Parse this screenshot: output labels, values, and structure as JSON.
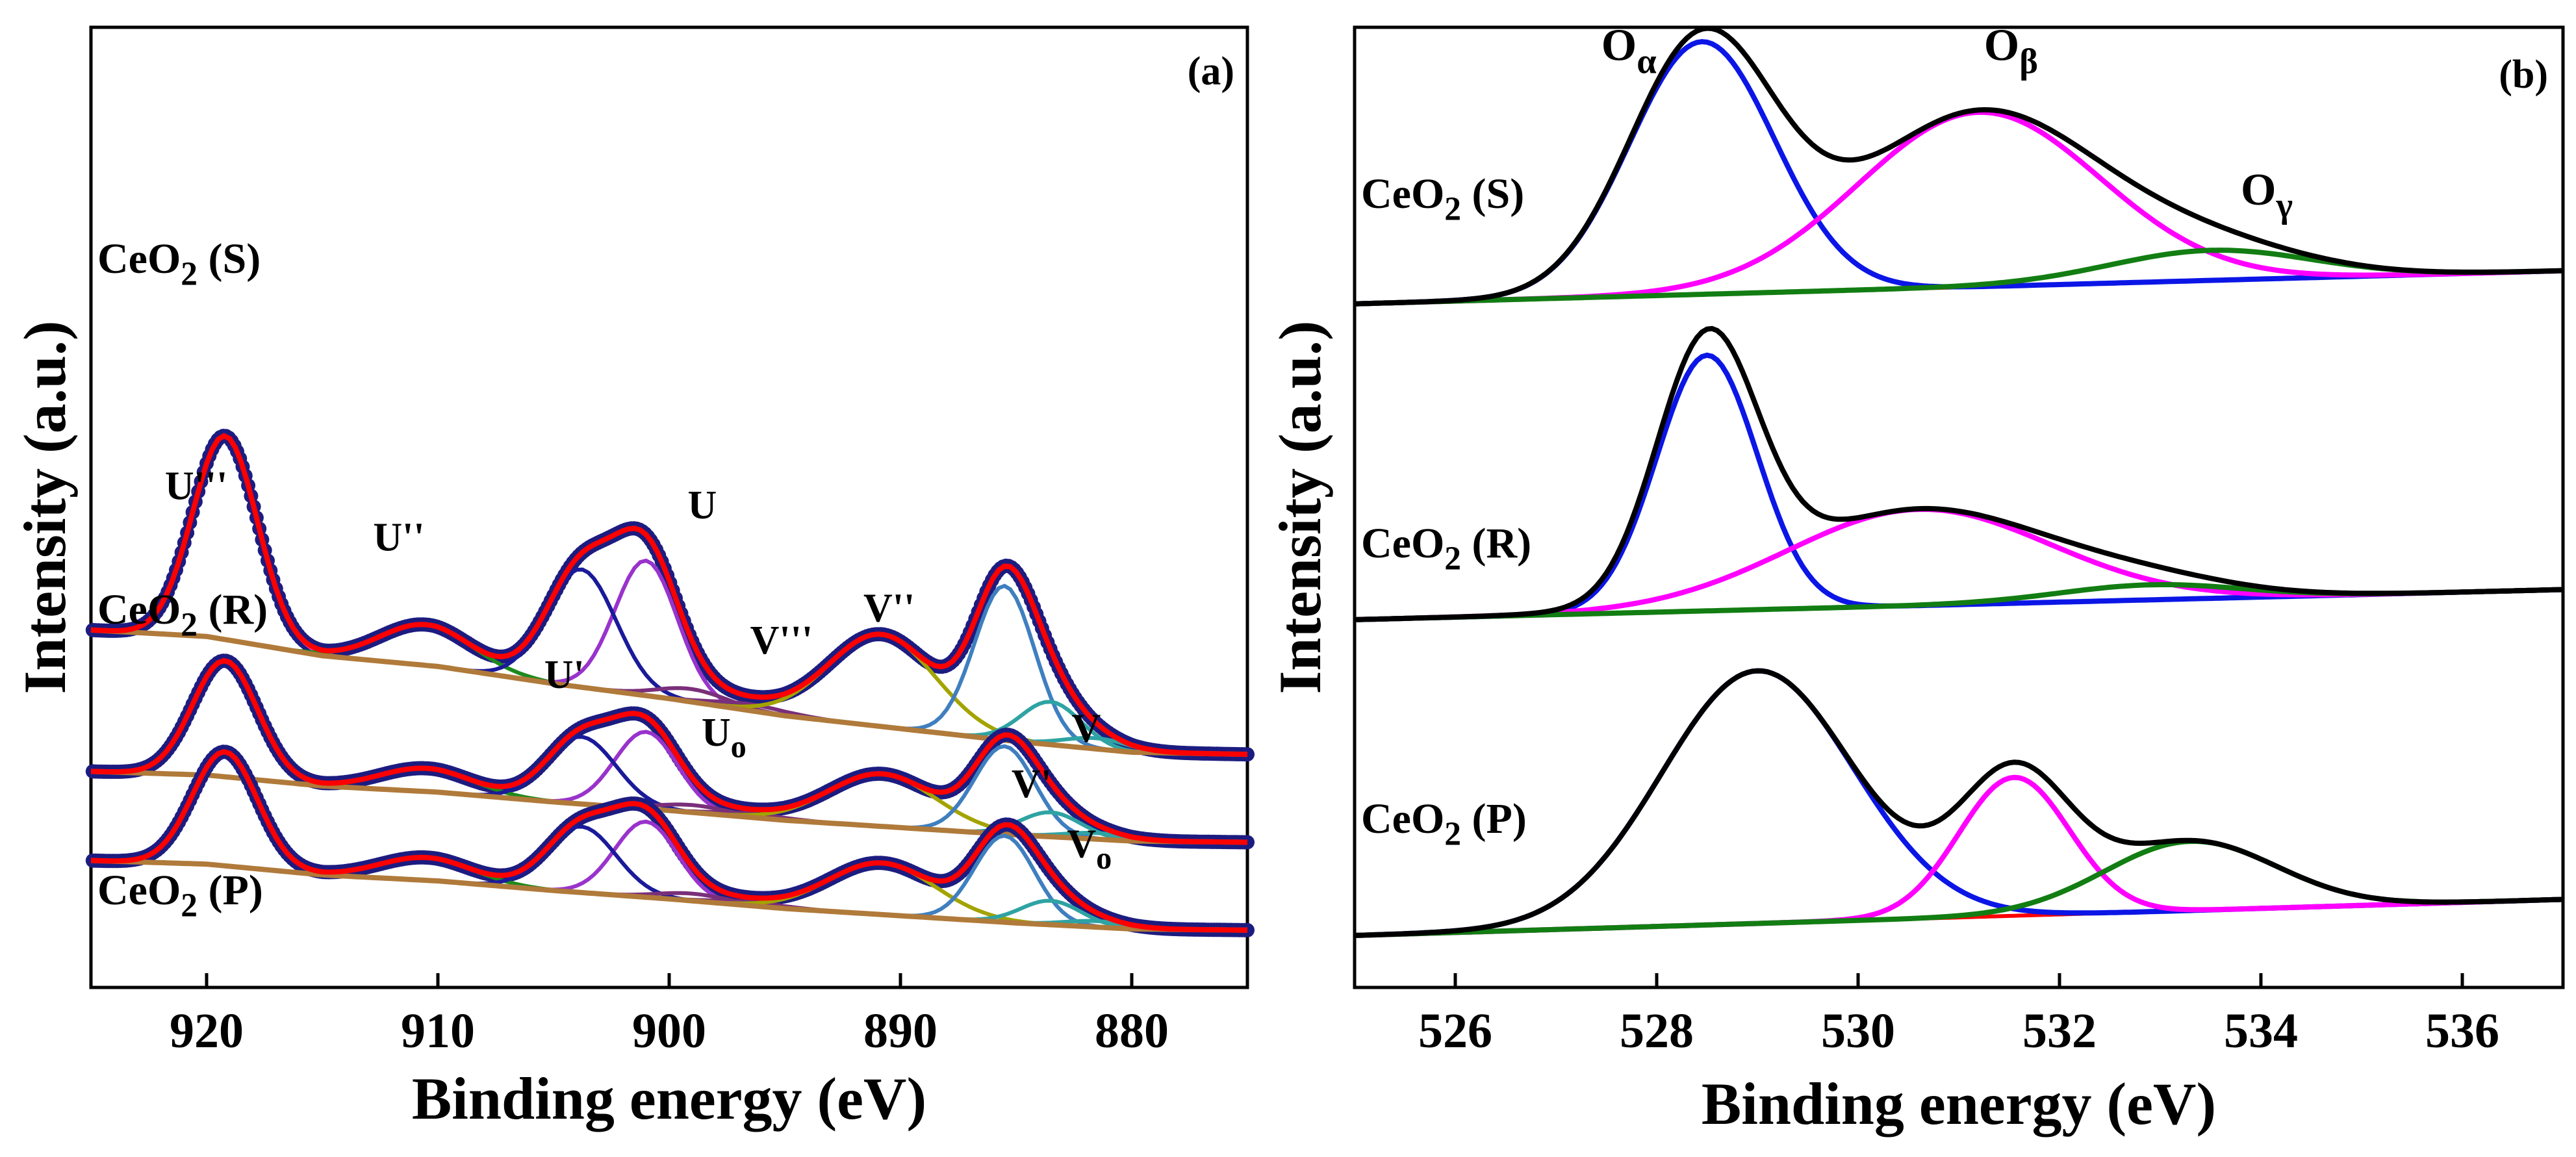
{
  "colors": {
    "dots": "#1c1c80",
    "red": "#ff0000",
    "magenta": "#ff00ff",
    "pink": "#ff40c0",
    "brown": "#b07a3a",
    "green": "#1d8a1d",
    "navy": "#1a1a9a",
    "violet": "#9933cc",
    "steel": "#3f7fbf",
    "olive": "#a3a300",
    "teal": "#2fa3a3",
    "purple": "#7a2f7a",
    "blue": "#0b16e6",
    "black": "#000000",
    "darkgreen": "#127d12"
  },
  "chart_data": [
    {
      "panel": "a",
      "panel_label": "(a)",
      "type": "line",
      "title": "",
      "xlabel": "Binding energy (eV)",
      "ylabel": "Intensity (a.u.)",
      "xlim": [
        925,
        875
      ],
      "x_reversed": true,
      "xticks": [
        920,
        910,
        900,
        890,
        880
      ],
      "yticks": false,
      "grid": false,
      "legend": "none",
      "samples": [
        {
          "name": "CeO2 (S)",
          "label_main": "CeO",
          "label_sub": "2",
          "label_tail": " (S)",
          "offset": 0.86,
          "scale": 1.0,
          "background": [
            [
              925,
              0.58
            ],
            [
              920,
              0.55
            ],
            [
              915,
              0.46
            ],
            [
              910,
              0.41
            ],
            [
              905,
              0.33
            ],
            [
              900,
              0.26
            ],
            [
              895,
              0.18
            ],
            [
              890,
              0.12
            ],
            [
              885,
              0.06
            ],
            [
              880,
              0.01
            ],
            [
              875,
              0.0
            ]
          ],
          "peaks": [
            {
              "name": "U'''",
              "center": 919.2,
              "height": 0.95,
              "width": 1.4
            },
            {
              "name": "U''",
              "center": 910.5,
              "height": 0.19,
              "width": 2.0
            },
            {
              "name": "U",
              "center": 901.0,
              "height": 0.63,
              "width": 1.35
            },
            {
              "name": "U'",
              "center": 903.8,
              "height": 0.55,
              "width": 1.5
            },
            {
              "name": "Uo",
              "center": 899.0,
              "height": 0.06,
              "width": 1.5
            },
            {
              "name": "V'''",
              "center": 896.5,
              "height": 0.03,
              "width": 1.6
            },
            {
              "name": "V''",
              "center": 890.8,
              "height": 0.43,
              "width": 2.3
            },
            {
              "name": "V",
              "center": 885.5,
              "height": 0.72,
              "width": 1.3
            },
            {
              "name": "V'",
              "center": 883.5,
              "height": 0.2,
              "width": 1.3
            },
            {
              "name": "Vo",
              "center": 881.5,
              "height": 0.05,
              "width": 1.4
            }
          ]
        },
        {
          "name": "CeO2 (R)",
          "label_main": "CeO",
          "label_sub": "2",
          "label_tail": " (R)",
          "offset": 0.45,
          "scale": 0.57,
          "background": [
            [
              925,
              0.58
            ],
            [
              920,
              0.55
            ],
            [
              915,
              0.46
            ],
            [
              910,
              0.41
            ],
            [
              905,
              0.33
            ],
            [
              900,
              0.26
            ],
            [
              895,
              0.18
            ],
            [
              890,
              0.12
            ],
            [
              885,
              0.06
            ],
            [
              880,
              0.01
            ],
            [
              875,
              0.0
            ]
          ],
          "peaks": [
            {
              "name": "U'''",
              "center": 919.2,
              "height": 0.95,
              "width": 1.4
            },
            {
              "name": "U''",
              "center": 910.5,
              "height": 0.19,
              "width": 2.0
            },
            {
              "name": "U",
              "center": 901.0,
              "height": 0.63,
              "width": 1.35
            },
            {
              "name": "U'",
              "center": 903.8,
              "height": 0.55,
              "width": 1.5
            },
            {
              "name": "Uo",
              "center": 899.0,
              "height": 0.06,
              "width": 1.5
            },
            {
              "name": "V'''",
              "center": 896.5,
              "height": 0.03,
              "width": 1.6
            },
            {
              "name": "V''",
              "center": 890.8,
              "height": 0.43,
              "width": 2.3
            },
            {
              "name": "V",
              "center": 885.5,
              "height": 0.72,
              "width": 1.3
            },
            {
              "name": "V'",
              "center": 883.5,
              "height": 0.2,
              "width": 1.3
            },
            {
              "name": "Vo",
              "center": 881.5,
              "height": 0.05,
              "width": 1.4
            }
          ]
        },
        {
          "name": "CeO2 (P)",
          "label_main": "CeO",
          "label_sub": "2",
          "label_tail": " (P)",
          "offset": 0.04,
          "scale": 0.56,
          "background": [
            [
              925,
              0.58
            ],
            [
              920,
              0.55
            ],
            [
              915,
              0.46
            ],
            [
              910,
              0.41
            ],
            [
              905,
              0.33
            ],
            [
              900,
              0.26
            ],
            [
              895,
              0.18
            ],
            [
              890,
              0.12
            ],
            [
              885,
              0.06
            ],
            [
              880,
              0.01
            ],
            [
              875,
              0.0
            ]
          ],
          "peaks": [
            {
              "name": "U'''",
              "center": 919.2,
              "height": 0.95,
              "width": 1.4
            },
            {
              "name": "U''",
              "center": 910.5,
              "height": 0.19,
              "width": 2.0
            },
            {
              "name": "U",
              "center": 901.0,
              "height": 0.63,
              "width": 1.35
            },
            {
              "name": "U'",
              "center": 903.8,
              "height": 0.55,
              "width": 1.5
            },
            {
              "name": "Uo",
              "center": 899.0,
              "height": 0.06,
              "width": 1.5
            },
            {
              "name": "V'''",
              "center": 896.5,
              "height": 0.03,
              "width": 1.6
            },
            {
              "name": "V''",
              "center": 890.8,
              "height": 0.43,
              "width": 2.3
            },
            {
              "name": "V",
              "center": 885.5,
              "height": 0.72,
              "width": 1.3
            },
            {
              "name": "V'",
              "center": 883.5,
              "height": 0.2,
              "width": 1.3
            },
            {
              "name": "Vo",
              "center": 881.5,
              "height": 0.05,
              "width": 1.4
            }
          ]
        }
      ],
      "annotations": [
        {
          "main": "U'''",
          "sub": "",
          "x": 921.8,
          "y": 2.05
        },
        {
          "main": "U''",
          "sub": "",
          "x": 912.8,
          "y": 1.81
        },
        {
          "main": "U",
          "sub": "",
          "x": 899.2,
          "y": 1.96
        },
        {
          "main": "U'",
          "sub": "",
          "x": 905.4,
          "y": 1.17
        },
        {
          "main": "U",
          "sub": "o",
          "x": 898.6,
          "y": 0.9
        },
        {
          "main": "V'''",
          "sub": "",
          "x": 896.5,
          "y": 1.33
        },
        {
          "main": "V''",
          "sub": "",
          "x": 891.6,
          "y": 1.48
        },
        {
          "main": "V",
          "sub": "",
          "x": 882.6,
          "y": 0.92
        },
        {
          "main": "V'",
          "sub": "",
          "x": 885.2,
          "y": 0.66
        },
        {
          "main": "V",
          "sub": "o",
          "x": 882.8,
          "y": 0.38
        }
      ]
    },
    {
      "panel": "b",
      "panel_label": "(b)",
      "type": "line",
      "title": "",
      "xlabel": "Binding energy (eV)",
      "ylabel": "Intensity (a.u.)",
      "xlim": [
        525,
        537
      ],
      "x_reversed": false,
      "xticks": [
        526,
        528,
        530,
        532,
        534,
        536
      ],
      "yticks": false,
      "grid": false,
      "legend": "none",
      "samples": [
        {
          "name": "CeO2 (S)",
          "label_main": "CeO",
          "label_sub": "2",
          "label_tail": " (S)",
          "offset": 0.0,
          "scale": 1.0,
          "baseline": [
            [
              525,
              2.1
            ],
            [
              537,
              2.21
            ]
          ],
          "peaks": [
            {
              "name": "Oα",
              "center": 528.45,
              "height": 0.84,
              "width": 0.72
            },
            {
              "name": "Oβ",
              "center": 531.2,
              "height": 0.58,
              "width": 1.2
            },
            {
              "name": "Oγ",
              "center": 533.5,
              "height": 0.1,
              "width": 1.0
            }
          ]
        },
        {
          "name": "CeO2 (R)",
          "label_main": "CeO",
          "label_sub": "2",
          "label_tail": " (R)",
          "offset": 0.0,
          "scale": 1.0,
          "baseline": [
            [
              525,
              1.05
            ],
            [
              537,
              1.15
            ]
          ],
          "peaks": [
            {
              "name": "Oα",
              "center": 528.5,
              "height": 0.85,
              "width": 0.5
            },
            {
              "name": "Oβ",
              "center": 530.6,
              "height": 0.32,
              "width": 1.3
            },
            {
              "name": "Oγ",
              "center": 532.9,
              "height": 0.05,
              "width": 0.9
            }
          ]
        },
        {
          "name": "CeO2 (P)",
          "label_main": "CeO",
          "label_sub": "2",
          "label_tail": " (P)",
          "offset": 0.0,
          "scale": 1.0,
          "baseline": [
            [
              525,
              0.0
            ],
            [
              537,
              0.12
            ]
          ],
          "peaks": [
            {
              "name": "Oα",
              "center": 529.0,
              "height": 0.84,
              "width": 0.95
            },
            {
              "name": "Oβ",
              "center": 531.55,
              "height": 0.46,
              "width": 0.55
            },
            {
              "name": "Oγ",
              "center": 533.3,
              "height": 0.23,
              "width": 0.85
            }
          ]
        }
      ],
      "annotations": [
        {
          "main": "O",
          "sub": "α",
          "x": 527.45,
          "y": 2.91
        },
        {
          "main": "O",
          "sub": "β",
          "x": 531.25,
          "y": 2.91
        },
        {
          "main": "O",
          "sub": "γ",
          "x": 533.8,
          "y": 2.43
        }
      ]
    }
  ]
}
